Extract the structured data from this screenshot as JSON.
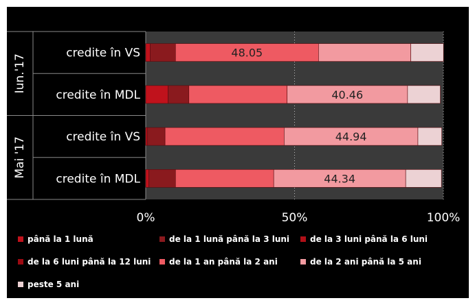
{
  "chart_data": {
    "type": "bar",
    "orientation": "horizontal",
    "stacked": true,
    "percent_stacked": true,
    "groups": [
      {
        "label": "Iun.'17",
        "rows": [
          {
            "label": "credite în VS",
            "values": [
              1.5,
              8.5,
              0,
              0,
              48.05,
              31,
              11
            ]
          },
          {
            "label": "credite în MDL",
            "values": [
              7.5,
              7,
              0,
              0,
              33,
              40.46,
              11
            ]
          }
        ]
      },
      {
        "label": "Mai '17",
        "rows": [
          {
            "label": "credite în VS",
            "values": [
              0.5,
              6,
              0,
              0,
              40,
              44.94,
              8
            ]
          },
          {
            "label": "credite în MDL",
            "values": [
              1,
              9,
              0,
              0,
              33,
              44.34,
              12
            ]
          }
        ]
      }
    ],
    "data_labels": [
      {
        "group": 0,
        "row": 0,
        "series": 4,
        "text": "48.05"
      },
      {
        "group": 0,
        "row": 1,
        "series": 5,
        "text": "40.46"
      },
      {
        "group": 1,
        "row": 0,
        "series": 5,
        "text": "44.94"
      },
      {
        "group": 1,
        "row": 1,
        "series": 5,
        "text": "44.34"
      }
    ],
    "series": [
      {
        "name": "până la 1 lună",
        "color": "#c0121c"
      },
      {
        "name": "de la 1 lună până la 3 luni",
        "color": "#8a1a1e"
      },
      {
        "name": "de la 3 luni până la 6 luni",
        "color": "#b01018"
      },
      {
        "name": "de la 6 luni până la 12 luni",
        "color": "#9c0a12"
      },
      {
        "name": "de la 1 an până la 2 ani",
        "color": "#ee5a62"
      },
      {
        "name": "de la 2 ani până la 5 ani",
        "color": "#f29aa0"
      },
      {
        "name": "peste 5 ani",
        "color": "#ecd2d4"
      }
    ],
    "x_ticks": [
      "0%",
      "50%",
      "100%"
    ],
    "xlim": [
      0,
      100
    ],
    "grid": "vertical dotted",
    "legend_position": "bottom",
    "colors": {
      "background": "#000000",
      "text": "#ffffff",
      "plot": "#3a3a3a",
      "grid": "#bfbfbf",
      "label_text": "#222222"
    }
  }
}
